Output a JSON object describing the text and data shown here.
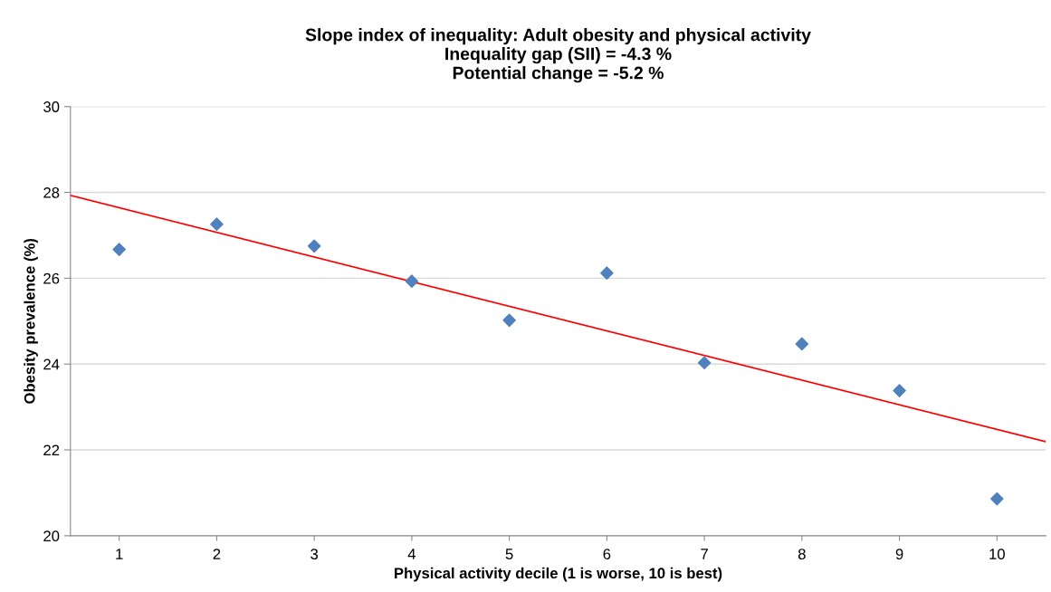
{
  "chart_data": {
    "type": "scatter",
    "title": "Slope index of inequality: Adult obesity and physical activity\nInequality gap (SII) = -4.3 %\nPotential change = -5.2 %",
    "xlabel": "Physical activity decile (1 is worse, 10 is best)",
    "ylabel": "Obesity prevalence (%)",
    "series": [
      {
        "color": "#4f81bd",
        "marker": "diamond",
        "x": [
          1,
          2,
          3,
          4,
          5,
          6,
          7,
          8,
          9,
          10
        ],
        "values": [
          26.67,
          27.26,
          26.75,
          25.93,
          25.02,
          26.12,
          24.03,
          24.47,
          23.38,
          20.86
        ]
      },
      {
        "type": "line",
        "color": "#ff0000",
        "marker": "none",
        "line_style": "solid",
        "x": [
          0.5,
          10.5
        ],
        "values": [
          27.93,
          22.19
        ]
      }
    ],
    "xlim": [
      0.5,
      10.5
    ],
    "xticks": [
      1,
      2,
      3,
      4,
      5,
      6,
      7,
      8,
      9,
      10
    ],
    "ylim": [
      20,
      30
    ],
    "yticks": [
      20,
      22,
      24,
      26,
      28,
      30
    ],
    "grid": "y",
    "legend": false
  }
}
